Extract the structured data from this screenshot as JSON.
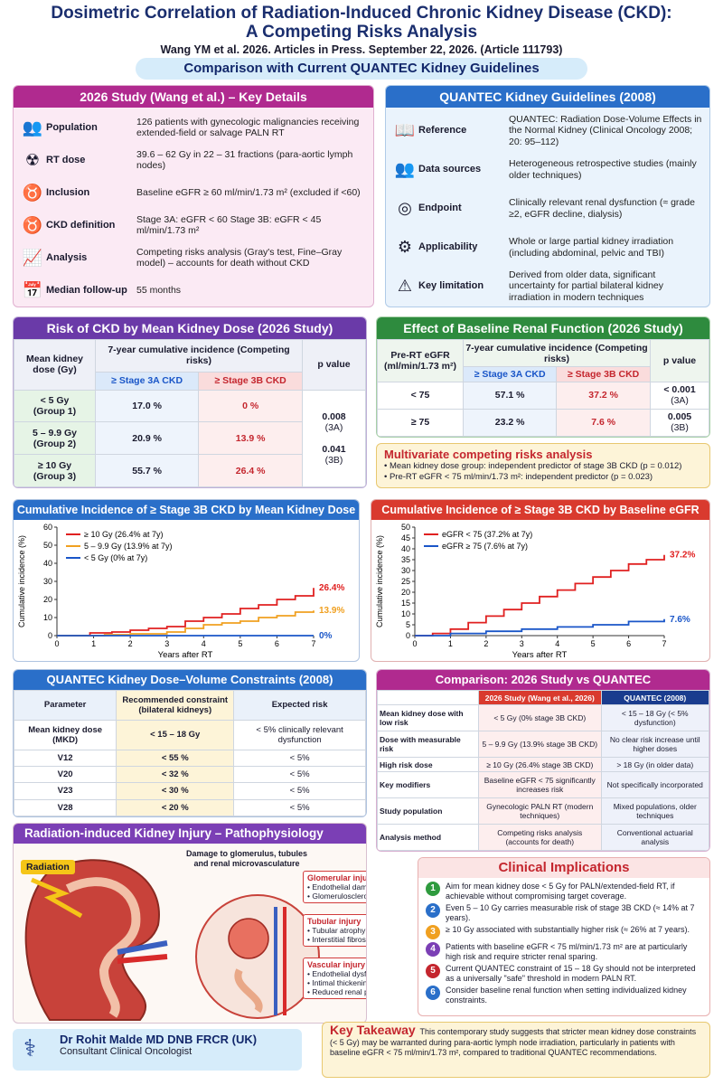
{
  "header": {
    "title1": "Dosimetric Correlation of Radiation-Induced Chronic Kidney Disease (CKD):",
    "title2": "A Competing Risks Analysis",
    "subtitle": "Wang YM et al. 2026.   Articles in Press.   September 22, 2026.  (Article 111793)",
    "banner": "Comparison with Current QUANTEC Kidney Guidelines"
  },
  "study": {
    "head": "2026 Study (Wang et al.) – Key Details",
    "rows": [
      {
        "icon": "👥",
        "label": "Population",
        "value": "126 patients with gynecologic malignancies receiving extended-field or salvage PALN RT"
      },
      {
        "icon": "☢",
        "label": "RT dose",
        "value": "39.6 – 62 Gy in 22 – 31 fractions (para-aortic lymph nodes)"
      },
      {
        "icon": "♉",
        "label": "Inclusion",
        "value": "Baseline eGFR ≥ 60 ml/min/1.73 m² (excluded if <60)"
      },
      {
        "icon": "♉",
        "label": "CKD definition",
        "value": "Stage 3A: eGFR < 60 Stage 3B: eGFR < 45 ml/min/1.73 m²"
      },
      {
        "icon": "📈",
        "label": "Analysis",
        "value": "Competing risks analysis (Gray's test, Fine–Gray model) – accounts for death without CKD"
      },
      {
        "icon": "📅",
        "label": "Median follow-up",
        "value": "55 months"
      }
    ]
  },
  "quantec": {
    "head": "QUANTEC Kidney Guidelines (2008)",
    "rows": [
      {
        "icon": "📖",
        "label": "Reference",
        "value": "QUANTEC: Radiation Dose-Volume Effects in the Normal Kidney (Clinical Oncology 2008; 20: 95–112)"
      },
      {
        "icon": "👥",
        "label": "Data sources",
        "value": "Heterogeneous retrospective studies (mainly older techniques)"
      },
      {
        "icon": "◎",
        "label": "Endpoint",
        "value": "Clinically relevant renal dysfunction (≈ grade ≥2, eGFR decline, dialysis)"
      },
      {
        "icon": "⚙",
        "label": "Applicability",
        "value": "Whole or large partial kidney irradiation (including abdominal, pelvic and TBI)"
      },
      {
        "icon": "⚠",
        "label": "Key limitation",
        "value": "Derived from older data, significant uncertainty for partial bilateral kidney irradiation in modern techniques"
      }
    ]
  },
  "riskdose": {
    "head": "Risk of CKD by Mean Kidney Dose (2026 Study)",
    "col1": "Mean kidney dose (Gy)",
    "col2": "7-year cumulative incidence (Competing risks)",
    "col3": "p value",
    "s3a": "≥ Stage 3A CKD",
    "s3b": "≥ Stage 3B CKD",
    "rows": [
      {
        "g": "< 5 Gy",
        "gs": "(Group 1)",
        "a": "17.0 %",
        "b": "0 %"
      },
      {
        "g": "5 – 9.9 Gy",
        "gs": "(Group 2)",
        "a": "20.9 %",
        "b": "13.9 %"
      },
      {
        "g": "≥ 10 Gy",
        "gs": "(Group 3)",
        "a": "55.7 %",
        "b": "26.4 %"
      }
    ],
    "p1": "0.008",
    "p1s": "(3A)",
    "p2": "0.041",
    "p2s": "(3B)"
  },
  "baseline": {
    "head": "Effect of Baseline Renal Function (2026 Study)",
    "col1": "Pre-RT eGFR (ml/min/1.73 m²)",
    "col2": "7-year cumulative incidence (Competing risks)",
    "col3": "p value",
    "s3a": "≥ Stage 3A CKD",
    "s3b": "≥ Stage 3B CKD",
    "rows": [
      {
        "g": "< 75",
        "a": "57.1 %",
        "b": "37.2 %",
        "p": "< 0.001",
        "ps": "(3A)"
      },
      {
        "g": "≥ 75",
        "a": "23.2 %",
        "b": "7.6 %",
        "p": "0.005",
        "ps": "(3B)"
      }
    ]
  },
  "multi": {
    "head": "Multivariate competing risks analysis",
    "i1": "Mean kidney dose group: independent predictor of stage 3B CKD (p = 0.012)",
    "i2": "Pre-RT eGFR < 75 ml/min/1.73 m²: independent predictor (p = 0.023)"
  },
  "chart_data": [
    {
      "type": "line",
      "title": "Cumulative Incidence of ≥ Stage 3B CKD by Mean Kidney Dose",
      "xlabel": "Years after RT",
      "ylabel": "Cumulative incidence (%)",
      "xlim": [
        0,
        7
      ],
      "ylim": [
        0,
        60
      ],
      "xticks": [
        "0",
        "1",
        "2",
        "3",
        "4",
        "5",
        "6",
        "7"
      ],
      "yticks": [
        "0",
        "10",
        "20",
        "30",
        "40",
        "50",
        "60"
      ],
      "legend": "top-left",
      "series": [
        {
          "name": "≥ 10 Gy (26.4% at 7y)",
          "color": "#e02020",
          "end_label": "26.4%",
          "points": [
            [
              0,
              0
            ],
            [
              0.9,
              1.5
            ],
            [
              1.5,
              2
            ],
            [
              2,
              3
            ],
            [
              2.5,
              4
            ],
            [
              3,
              5
            ],
            [
              3.5,
              8
            ],
            [
              4,
              10
            ],
            [
              4.5,
              12
            ],
            [
              5,
              15
            ],
            [
              5.5,
              17
            ],
            [
              6,
              20
            ],
            [
              6.5,
              22
            ],
            [
              7,
              26.4
            ]
          ]
        },
        {
          "name": "5 – 9.9 Gy (13.9% at 7y)",
          "color": "#f0a020",
          "end_label": "13.9%",
          "points": [
            [
              0,
              0
            ],
            [
              1.3,
              0.5
            ],
            [
              2,
              1
            ],
            [
              3,
              2
            ],
            [
              3.5,
              4
            ],
            [
              4,
              6
            ],
            [
              4.5,
              7
            ],
            [
              5,
              8
            ],
            [
              5.5,
              10
            ],
            [
              6,
              11
            ],
            [
              6.5,
              13
            ],
            [
              7,
              13.9
            ]
          ]
        },
        {
          "name": "< 5 Gy (0% at 7y)",
          "color": "#1a56c8",
          "end_label": "0%",
          "points": [
            [
              0,
              0
            ],
            [
              7,
              0
            ]
          ]
        }
      ]
    },
    {
      "type": "line",
      "title": "Cumulative Incidence of ≥ Stage 3B CKD by Baseline eGFR",
      "xlabel": "Years after RT",
      "ylabel": "Cumulative incidence (%)",
      "xlim": [
        0,
        7
      ],
      "ylim": [
        0,
        50
      ],
      "xticks": [
        "0",
        "1",
        "2",
        "3",
        "4",
        "5",
        "6",
        "7"
      ],
      "yticks": [
        "0",
        "5",
        "10",
        "15",
        "20",
        "25",
        "30",
        "35",
        "40",
        "45",
        "50"
      ],
      "legend": "top-left",
      "series": [
        {
          "name": "eGFR < 75 (37.2% at 7y)",
          "color": "#e02020",
          "end_label": "37.2%",
          "points": [
            [
              0,
              0
            ],
            [
              0.5,
              1
            ],
            [
              1,
              3
            ],
            [
              1.5,
              6
            ],
            [
              2,
              9
            ],
            [
              2.5,
              12
            ],
            [
              3,
              15
            ],
            [
              3.5,
              18
            ],
            [
              4,
              21
            ],
            [
              4.5,
              24
            ],
            [
              5,
              27
            ],
            [
              5.5,
              30
            ],
            [
              6,
              33
            ],
            [
              6.5,
              35
            ],
            [
              7,
              37.2
            ]
          ]
        },
        {
          "name": "eGFR ≥ 75 (7.6% at 7y)",
          "color": "#1a56c8",
          "end_label": "7.6%",
          "points": [
            [
              0,
              0
            ],
            [
              1,
              1
            ],
            [
              2,
              2
            ],
            [
              3,
              3
            ],
            [
              4,
              4
            ],
            [
              5,
              5
            ],
            [
              6,
              6.5
            ],
            [
              7,
              7.6
            ]
          ]
        }
      ]
    }
  ],
  "constraints": {
    "head": "QUANTEC Kidney Dose–Volume Constraints (2008)",
    "c1": "Parameter",
    "c2": "Recommended constraint (bilateral kidneys)",
    "c3": "Expected risk",
    "rows": [
      {
        "p": "Mean kidney dose (MKD)",
        "c": "< 15 – 18 Gy",
        "r": "< 5% clinically relevant dysfunction"
      },
      {
        "p": "V12",
        "c": "< 55 %",
        "r": "< 5%"
      },
      {
        "p": "V20",
        "c": "< 32 %",
        "r": "< 5%"
      },
      {
        "p": "V23",
        "c": "< 30 %",
        "r": "< 5%"
      },
      {
        "p": "V28",
        "c": "< 20 %",
        "r": "< 5%"
      }
    ]
  },
  "comparison": {
    "head": "Comparison: 2026 Study vs QUANTEC",
    "c2": "2026 Study (Wang et al., 2026)",
    "c3": "QUANTEC (2008)",
    "rows": [
      {
        "k": "Mean kidney dose with low risk",
        "a": "< 5 Gy (0% stage 3B CKD)",
        "q": "< 15 – 18 Gy (< 5% dysfunction)"
      },
      {
        "k": "Dose with measurable risk",
        "a": "5 – 9.9 Gy (13.9% stage 3B CKD)",
        "q": "No clear risk increase until higher doses"
      },
      {
        "k": "High risk dose",
        "a": "≥ 10 Gy (26.4% stage 3B CKD)",
        "q": "> 18 Gy (in older data)"
      },
      {
        "k": "Key modifiers",
        "a": "Baseline eGFR < 75 significantly increases risk",
        "q": "Not specifically incorporated"
      },
      {
        "k": "Study population",
        "a": "Gynecologic PALN RT (modern techniques)",
        "q": "Mixed populations, older techniques"
      },
      {
        "k": "Analysis method",
        "a": "Competing risks analysis (accounts for death)",
        "q": "Conventional actuarial analysis"
      }
    ]
  },
  "patho": {
    "head": "Radiation-induced Kidney Injury – Pathophysiology",
    "radiation": "Radiation",
    "damage": "Damage to glomerulus, tubules and renal microvasculature",
    "g_h": "Glomerular injury",
    "g1": "Endothelial damage",
    "g2": "Glomerulosclerosis",
    "t_h": "Tubular injury",
    "t1": "Tubular atrophy",
    "t2": "Interstitial fibrosis",
    "v_h": "Vascular injury",
    "v1": "Endothelial dysfunction",
    "v2": "Intimal thickening",
    "v3": "Reduced renal perfusion"
  },
  "implications": {
    "head": "Clinical Implications",
    "items": [
      {
        "n": "1",
        "color": "#2e9b3e",
        "t": "Aim for mean kidney dose < 5 Gy for PALN/extended-field RT, if achievable without compromising target coverage."
      },
      {
        "n": "2",
        "color": "#2a6fc9",
        "t": "Even 5 – 10 Gy carries measurable risk of stage 3B CKD (≈ 14% at 7 years)."
      },
      {
        "n": "3",
        "color": "#f0a020",
        "t": "≥ 10 Gy associated with substantially higher risk (≈ 26% at 7 years)."
      },
      {
        "n": "4",
        "color": "#7b3fb5",
        "t": "Patients with baseline eGFR < 75 ml/min/1.73 m² are at particularly high risk and require stricter renal sparing."
      },
      {
        "n": "5",
        "color": "#c4262e",
        "t": "Current QUANTEC constraint of 15 – 18 Gy should not be interpreted as a universally \"safe\" threshold in modern PALN RT."
      },
      {
        "n": "6",
        "color": "#2a6fc9",
        "t": "Consider baseline renal function when setting individualized kidney constraints."
      }
    ]
  },
  "author": {
    "name": "Dr Rohit Malde MD DNB FRCR (UK)",
    "role": "Consultant Clinical Oncologist"
  },
  "takeaway": {
    "head": "Key Takeaway",
    "text": "This contemporary study suggests that stricter mean kidney dose constraints (< 5 Gy) may be warranted during para-aortic lymph node irradiation, particularly in patients with baseline eGFR < 75 ml/min/1.73 m², compared to traditional QUANTEC recommendations."
  }
}
